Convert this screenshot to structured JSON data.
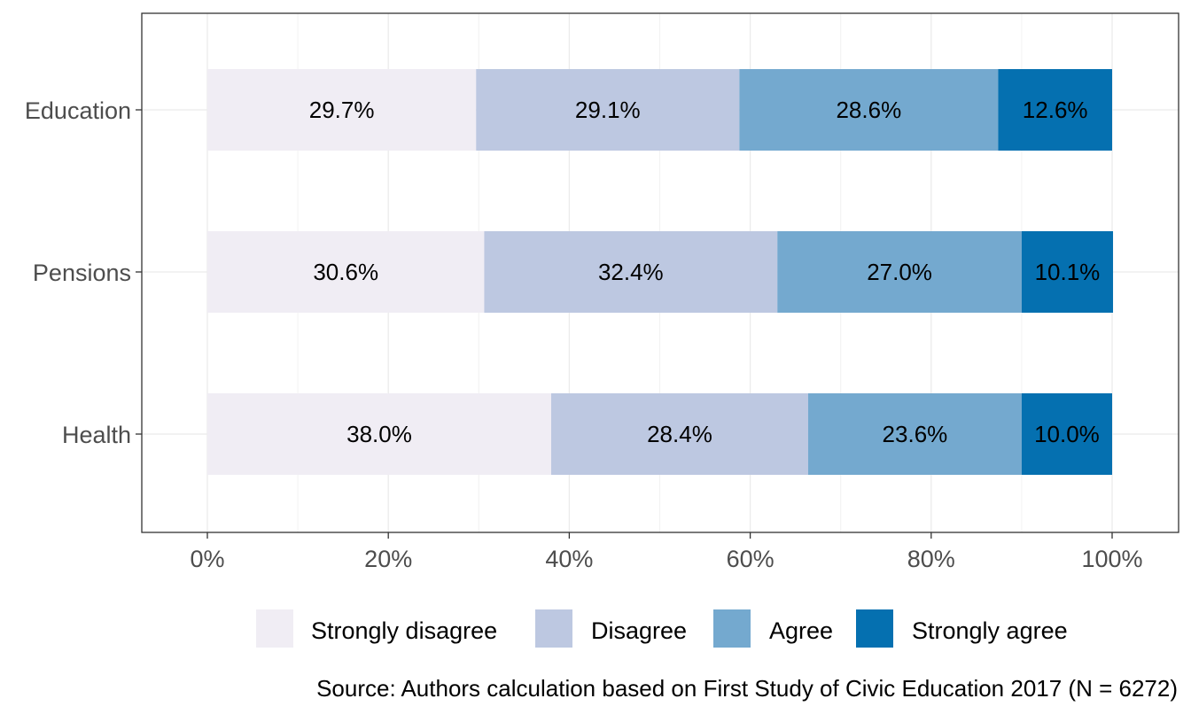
{
  "chart_data": {
    "type": "bar",
    "orientation": "horizontal",
    "stacked": true,
    "categories": [
      "Education",
      "Pensions",
      "Health"
    ],
    "series": [
      {
        "name": "Strongly disagree",
        "color": "#f0edf4",
        "values": [
          29.7,
          30.6,
          38.0
        ],
        "labels": [
          "29.7%",
          "30.6%",
          "38.0%"
        ]
      },
      {
        "name": "Disagree",
        "color": "#bdc8e1",
        "values": [
          29.1,
          32.4,
          28.4
        ],
        "labels": [
          "29.1%",
          "32.4%",
          "28.4%"
        ]
      },
      {
        "name": "Agree",
        "color": "#74a9cf",
        "values": [
          28.6,
          27.0,
          23.6
        ],
        "labels": [
          "28.6%",
          "27.0%",
          "23.6%"
        ]
      },
      {
        "name": "Strongly agree",
        "color": "#0570b0",
        "values": [
          12.6,
          10.1,
          10.0
        ],
        "labels": [
          "12.6%",
          "10.1%",
          "10.0%"
        ]
      }
    ],
    "xlim": [
      0,
      100
    ],
    "x_ticks": [
      0,
      20,
      40,
      60,
      80,
      100
    ],
    "x_tick_labels": [
      "0%",
      "20%",
      "40%",
      "60%",
      "80%",
      "100%"
    ],
    "xlabel": "",
    "ylabel": "",
    "grid": true,
    "legend_position": "bottom",
    "caption": "Source: Authors calculation based on First Study of Civic Education 2017 (N = 6272)"
  }
}
